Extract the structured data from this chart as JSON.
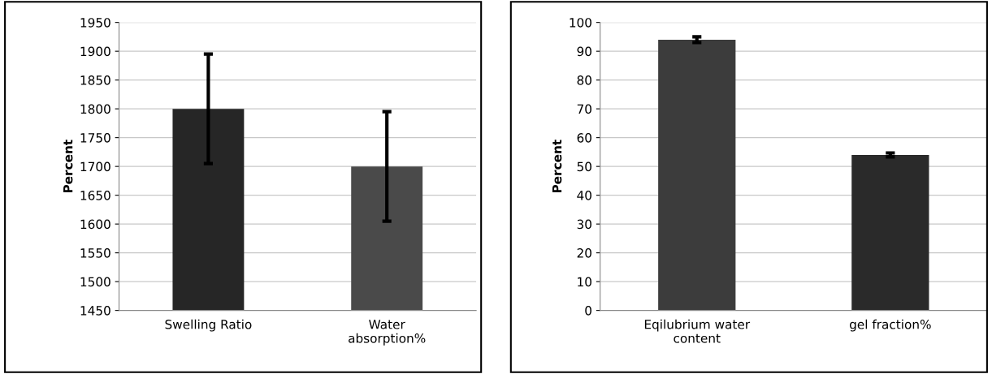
{
  "chart_data": [
    {
      "type": "bar",
      "ylabel": "Percent",
      "categories": [
        "Swelling Ratio",
        "Water\nabsorption%"
      ],
      "values": [
        1800,
        1700
      ],
      "errors": [
        95,
        95
      ],
      "colors": [
        "#262626",
        "#4a4a4a"
      ],
      "ylim": [
        1450,
        1950
      ],
      "yticks": [
        1450,
        1500,
        1550,
        1600,
        1650,
        1700,
        1750,
        1800,
        1850,
        1900,
        1950
      ],
      "grid": "y",
      "legend": false
    },
    {
      "type": "bar",
      "ylabel": "Percent",
      "categories": [
        "Eqilubrium water\ncontent",
        "gel fraction%"
      ],
      "values": [
        94,
        54
      ],
      "errors": [
        1,
        0.7
      ],
      "colors": [
        "#3c3c3c",
        "#2a2a2a"
      ],
      "ylim": [
        0,
        100
      ],
      "yticks": [
        0,
        10,
        20,
        30,
        40,
        50,
        60,
        70,
        80,
        90,
        100
      ],
      "grid": "y",
      "legend": false
    }
  ]
}
